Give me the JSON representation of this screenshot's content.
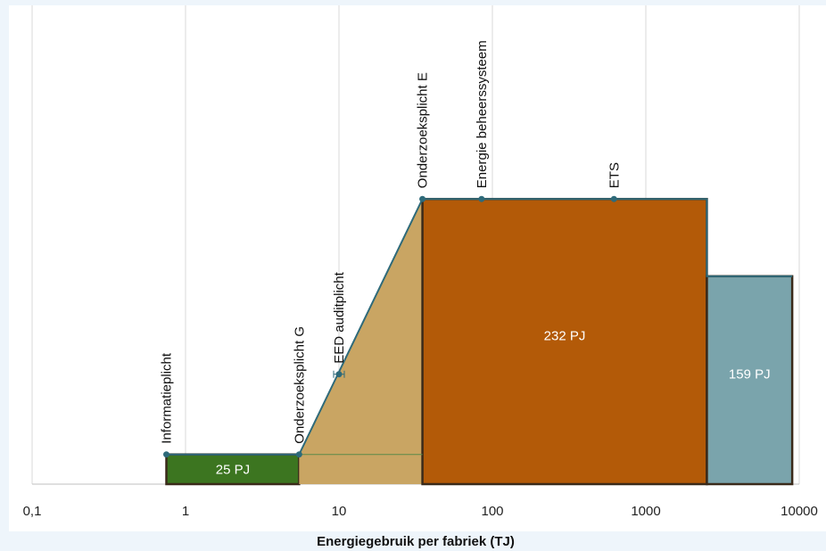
{
  "chart_data": {
    "type": "area",
    "xscale": "log",
    "xlim": [
      0.1,
      10000
    ],
    "xlabel": "Energiegebruik per fabriek (TJ)",
    "ylabel": "",
    "title": "",
    "grid": "vertical",
    "x_ticks": [
      {
        "value": 0.1,
        "label": "0,1"
      },
      {
        "value": 1,
        "label": "1"
      },
      {
        "value": 10,
        "label": "10"
      },
      {
        "value": 100,
        "label": "100"
      },
      {
        "value": 1000,
        "label": "1000"
      },
      {
        "value": 10000,
        "label": "10000"
      }
    ],
    "obligation_curve": {
      "points": [
        {
          "x": 0.75,
          "y": 1
        },
        {
          "x": 5.5,
          "y": 1
        },
        {
          "x": 35,
          "y": 9.6
        },
        {
          "x": 2500,
          "y": 9.6
        },
        {
          "x": 2500,
          "y": 7
        },
        {
          "x": 9000,
          "y": 7
        }
      ]
    },
    "thresholds": [
      {
        "label": "Informatieplicht",
        "x": 0.75,
        "y": 1
      },
      {
        "label": "Onderzoeksplicht G",
        "x": 5.5,
        "y": 1
      },
      {
        "label": "EED auditplicht",
        "x": 10,
        "y": 3.7
      },
      {
        "label": "Onderzoeksplicht E",
        "x": 35,
        "y": 9.6
      },
      {
        "label": "Energie beheerssysteem",
        "x": 85,
        "y": 9.6
      },
      {
        "label": "ETS",
        "x": 620,
        "y": 9.6
      }
    ],
    "blocks": [
      {
        "label": "25 PJ",
        "x0": 0.75,
        "x1": 5.5,
        "y0": 0,
        "y1": 1,
        "color": "#3c7520",
        "label_y": 0.5
      },
      {
        "label": "",
        "x0": 5.5,
        "x1": 35,
        "y0": 0,
        "y1": 9.6,
        "shape": "trapezoid",
        "color": "#c9a563"
      },
      {
        "label": "232 PJ",
        "x0": 35,
        "x1": 2500,
        "y0": 0,
        "y1": 9.6,
        "color": "#b35a08",
        "label_y": 5
      },
      {
        "label": "159 PJ",
        "x0": 2500,
        "x1": 9000,
        "y0": 0,
        "y1": 7,
        "color": "#7aa4ac",
        "label_y": 3.7
      }
    ],
    "colors": {
      "curve": "#2e6a7a",
      "grid": "#d9d9d9",
      "block_border": "#3a2a1a"
    }
  }
}
